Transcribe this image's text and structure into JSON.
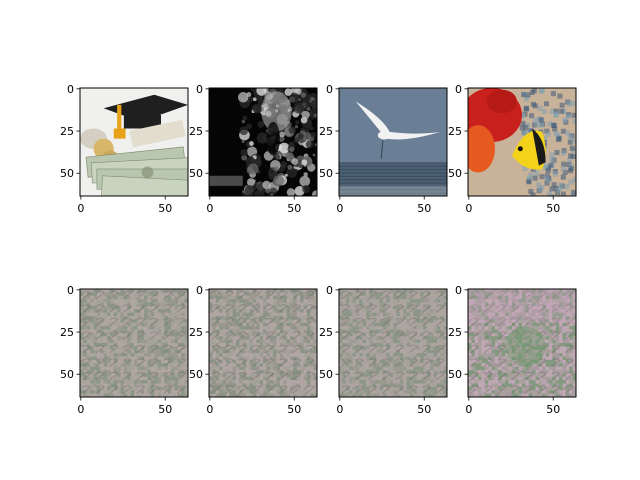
{
  "chart_data": [
    {
      "type": "heatmap",
      "image": "graduation-cap-diploma-money",
      "xticks": [
        0,
        50
      ],
      "yticks": [
        0,
        25,
        50
      ],
      "xlim": [
        -0.5,
        63.5
      ],
      "ylim": [
        63.5,
        -0.5
      ],
      "colors": [
        "#d4cfc2",
        "#f0f0ee",
        "#1f1f1f",
        "#e8a21a",
        "#c8d3c0",
        "#7f8a6e"
      ]
    },
    {
      "type": "heatmap",
      "image": "dark-grayscale-animal-face",
      "xticks": [
        0,
        50
      ],
      "yticks": [
        0,
        25,
        50
      ],
      "xlim": [
        -0.5,
        63.5
      ],
      "ylim": [
        63.5,
        -0.5
      ],
      "colors": [
        "#050505",
        "#2a2a2a",
        "#6a6a6a",
        "#bdbdbd",
        "#e6e6e6"
      ]
    },
    {
      "type": "heatmap",
      "image": "white-bird-over-water",
      "xticks": [
        0,
        50
      ],
      "yticks": [
        0,
        25,
        50
      ],
      "xlim": [
        -0.5,
        63.5
      ],
      "ylim": [
        63.5,
        -0.5
      ],
      "colors": [
        "#6a7f96",
        "#4d6175",
        "#334455",
        "#f2f2f2",
        "#c7cdd2"
      ]
    },
    {
      "type": "heatmap",
      "image": "red-parrot-yellow-fish",
      "xticks": [
        0,
        50
      ],
      "yticks": [
        0,
        25,
        50
      ],
      "xlim": [
        -0.5,
        63.5
      ],
      "ylim": [
        63.5,
        -0.5
      ],
      "colors": [
        "#c8201c",
        "#e65a1f",
        "#f2d21a",
        "#7fa0b0",
        "#c9b29a",
        "#3a5a78"
      ]
    },
    {
      "type": "heatmap",
      "image": "noise-pattern-gray",
      "xticks": [
        0,
        50
      ],
      "yticks": [
        0,
        25,
        50
      ],
      "xlim": [
        -0.5,
        63.5
      ],
      "ylim": [
        63.5,
        -0.5
      ],
      "colors": [
        "#9b9a90",
        "#b3a7a5",
        "#8a9585",
        "#a8a49c"
      ]
    },
    {
      "type": "heatmap",
      "image": "noise-pattern-gray",
      "xticks": [
        0,
        50
      ],
      "yticks": [
        0,
        25,
        50
      ],
      "xlim": [
        -0.5,
        63.5
      ],
      "ylim": [
        63.5,
        -0.5
      ],
      "colors": [
        "#9a988f",
        "#b5a8a7",
        "#889384",
        "#a6a39b"
      ]
    },
    {
      "type": "heatmap",
      "image": "noise-pattern-gray",
      "xticks": [
        0,
        50
      ],
      "yticks": [
        0,
        25,
        50
      ],
      "xlim": [
        -0.5,
        63.5
      ],
      "ylim": [
        63.5,
        -0.5
      ],
      "colors": [
        "#9c9b91",
        "#b2a6a4",
        "#8b9686",
        "#a9a59d"
      ]
    },
    {
      "type": "heatmap",
      "image": "noise-pattern-pinkish-green-center",
      "xticks": [
        0,
        50
      ],
      "yticks": [
        0,
        25,
        50
      ],
      "xlim": [
        -0.5,
        63.5
      ],
      "ylim": [
        63.5,
        -0.5
      ],
      "colors": [
        "#a79a9f",
        "#c3a9b7",
        "#7e9a7a",
        "#a8a29e"
      ]
    }
  ]
}
